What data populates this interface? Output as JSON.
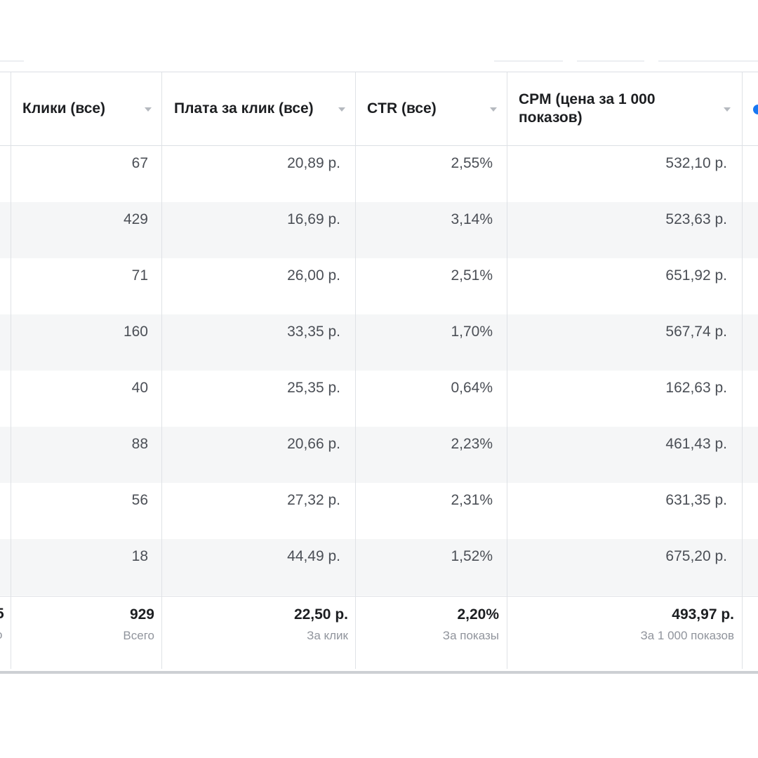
{
  "columns": [
    {
      "label": "Клики (все)"
    },
    {
      "label": "Плата за клик (все)"
    },
    {
      "label": "CTR (все)"
    },
    {
      "label": "CPM (цена за 1 000 показов)"
    }
  ],
  "rows": [
    {
      "clicks": "67",
      "cpc": "20,89 р.",
      "ctr": "2,55%",
      "cpm": "532,10 р."
    },
    {
      "clicks": "429",
      "cpc": "16,69 р.",
      "ctr": "3,14%",
      "cpm": "523,63 р."
    },
    {
      "clicks": "71",
      "cpc": "26,00 р.",
      "ctr": "2,51%",
      "cpm": "651,92 р."
    },
    {
      "clicks": "160",
      "cpc": "33,35 р.",
      "ctr": "1,70%",
      "cpm": "567,74 р."
    },
    {
      "clicks": "40",
      "cpc": "25,35 р.",
      "ctr": "0,64%",
      "cpm": "162,63 р."
    },
    {
      "clicks": "88",
      "cpc": "20,66 р.",
      "ctr": "2,23%",
      "cpm": "461,43 р."
    },
    {
      "clicks": "56",
      "cpc": "27,32 р.",
      "ctr": "2,31%",
      "cpm": "631,35 р."
    },
    {
      "clicks": "18",
      "cpc": "44,49 р.",
      "ctr": "1,52%",
      "cpm": "675,20 р."
    }
  ],
  "totals": {
    "left_partial_value": "5",
    "left_partial_sub": "о",
    "clicks": {
      "value": "929",
      "sub": "Всего"
    },
    "cpc": {
      "value": "22,50 р.",
      "sub": "За клик"
    },
    "ctr": {
      "value": "2,20%",
      "sub": "За показы"
    },
    "cpm": {
      "value": "493,97 р.",
      "sub": "За 1 000 показов"
    }
  },
  "colors": {
    "header_text": "#1c1e21",
    "cell_text": "#4b4f56",
    "muted_text": "#90949c",
    "alt_row": "#f5f6f7",
    "accent": "#1877f2"
  }
}
